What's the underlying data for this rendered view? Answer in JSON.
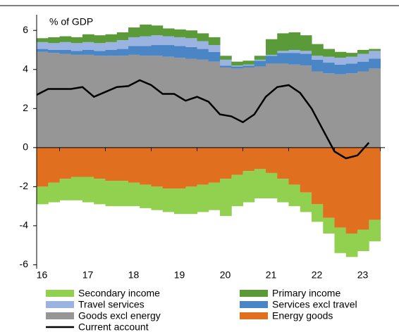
{
  "chart_data": {
    "type": "stacked-step-area",
    "y_label": "% of GDP",
    "x": [
      2015.5,
      2015.75,
      2016,
      2016.25,
      2016.5,
      2016.75,
      2017,
      2017.25,
      2017.5,
      2017.75,
      2018,
      2018.25,
      2018.5,
      2018.75,
      2019,
      2019.25,
      2019.5,
      2019.75,
      2020,
      2020.25,
      2020.5,
      2020.75,
      2021,
      2021.25,
      2021.5,
      2021.75,
      2022,
      2022.25,
      2022.5,
      2022.75
    ],
    "xlim": [
      2015.5,
      2023.1
    ],
    "xticks": [
      {
        "value": 2016,
        "label": "16"
      },
      {
        "value": 2017,
        "label": "17"
      },
      {
        "value": 2018,
        "label": "18"
      },
      {
        "value": 2019,
        "label": "19"
      },
      {
        "value": 2020,
        "label": "20"
      },
      {
        "value": 2021,
        "label": "21"
      },
      {
        "value": 2022,
        "label": "22"
      },
      {
        "value": 2023,
        "label": "23"
      }
    ],
    "ylim": [
      -6.2,
      6.8
    ],
    "yticks": [
      -6,
      -4,
      -2,
      0,
      2,
      4,
      6
    ],
    "series": [
      {
        "name": "Secondary income",
        "color": "#92d050",
        "values": [
          -0.9,
          -1.0,
          -1.1,
          -1.2,
          -1.3,
          -1.3,
          -1.3,
          -1.3,
          -1.2,
          -1.2,
          -1.2,
          -1.2,
          -1.3,
          -1.4,
          -1.4,
          -1.4,
          -1.9,
          -1.6,
          -1.6,
          -1.5,
          -1.3,
          -1.2,
          -1.1,
          -1.0,
          -0.9,
          -0.8,
          -1.3,
          -1.2,
          -1.1,
          -1.1
        ]
      },
      {
        "name": "Primary income",
        "color": "#5a9a38",
        "values": [
          0.2,
          0.3,
          0.3,
          0.3,
          0.4,
          0.4,
          0.4,
          0.4,
          0.5,
          0.6,
          0.5,
          0.4,
          0.4,
          0.4,
          0.4,
          0.4,
          0.2,
          0.2,
          0.2,
          0.2,
          0.8,
          0.9,
          0.9,
          0.8,
          0.6,
          0.4,
          0.3,
          0.2,
          0.2,
          0.1
        ]
      },
      {
        "name": "Travel services",
        "color": "#9bb3e0",
        "values": [
          0.35,
          0.35,
          0.4,
          0.4,
          0.4,
          0.4,
          0.4,
          0.45,
          0.45,
          0.5,
          0.5,
          0.45,
          0.45,
          0.45,
          0.4,
          0.35,
          0.3,
          0.05,
          0.05,
          0.05,
          0.05,
          0.1,
          0.15,
          0.15,
          0.2,
          0.3,
          0.35,
          0.35,
          0.4,
          0.4
        ]
      },
      {
        "name": "Services excl travel",
        "color": "#4a86c5",
        "values": [
          0.15,
          0.15,
          0.2,
          0.2,
          0.25,
          0.25,
          0.3,
          0.35,
          0.45,
          0.5,
          0.55,
          0.6,
          0.6,
          0.6,
          0.55,
          0.5,
          0.1,
          0.1,
          0.1,
          0.3,
          0.4,
          0.55,
          0.6,
          0.6,
          0.6,
          0.55,
          0.5,
          0.5,
          0.5,
          0.5
        ]
      },
      {
        "name": "Goods excl energy",
        "color": "#969696",
        "values": [
          4.9,
          4.85,
          4.8,
          4.75,
          4.75,
          4.7,
          4.7,
          4.7,
          4.75,
          4.7,
          4.7,
          4.65,
          4.6,
          4.55,
          4.5,
          4.4,
          4.1,
          4.05,
          4.1,
          4.15,
          4.3,
          4.3,
          4.25,
          4.2,
          3.9,
          3.8,
          3.75,
          3.8,
          3.9,
          4.05
        ]
      },
      {
        "name": "Energy goods",
        "color": "#e07020",
        "values": [
          -2.0,
          -1.8,
          -1.6,
          -1.5,
          -1.5,
          -1.6,
          -1.7,
          -1.7,
          -1.8,
          -1.9,
          -2.0,
          -2.1,
          -2.1,
          -2.0,
          -1.9,
          -1.8,
          -1.6,
          -1.4,
          -1.2,
          -1.1,
          -1.3,
          -1.6,
          -1.9,
          -2.3,
          -2.9,
          -3.6,
          -4.1,
          -4.4,
          -4.2,
          -3.7
        ]
      },
      {
        "name": "Current account",
        "color": "#000000",
        "kind": "line",
        "values": [
          2.7,
          3.0,
          3.0,
          3.0,
          3.1,
          2.6,
          2.85,
          3.1,
          3.15,
          3.45,
          3.2,
          2.75,
          2.75,
          2.4,
          2.6,
          2.35,
          1.7,
          1.6,
          1.3,
          1.7,
          2.6,
          3.1,
          3.2,
          2.8,
          2.0,
          0.9,
          -0.2,
          -0.55,
          -0.4,
          0.25
        ]
      }
    ],
    "stack_order": [
      "Goods excl energy",
      "Services excl travel",
      "Travel services",
      "Primary income",
      "Energy goods",
      "Secondary income"
    ]
  }
}
